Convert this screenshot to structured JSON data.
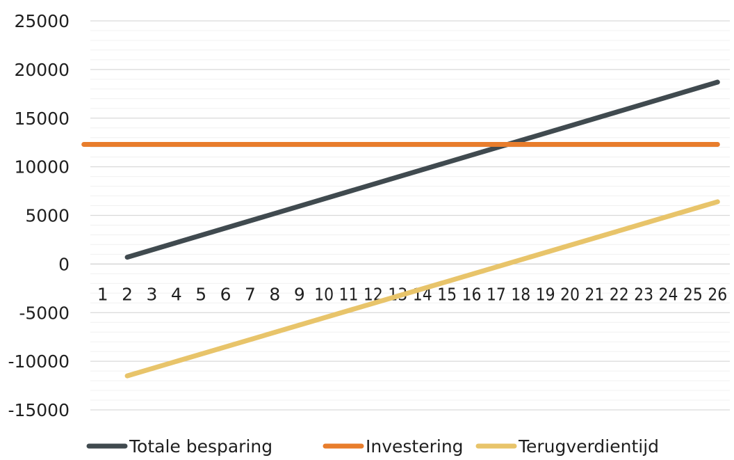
{
  "chart_data": {
    "type": "line",
    "title": "",
    "xlabel": "",
    "ylabel": "",
    "ylim": [
      -15000,
      25000
    ],
    "y_ticks": [
      25000,
      20000,
      15000,
      10000,
      5000,
      0,
      -5000,
      -10000,
      -15000
    ],
    "y_tick_labels": [
      "25000",
      "20000",
      "15000",
      "10000",
      "5000",
      "0",
      "-5000",
      "-10000",
      "-15000"
    ],
    "y_major_step": 5000,
    "y_minor_step": 1000,
    "grid": true,
    "x_tick_labels": [
      "1",
      "2",
      "3",
      "4",
      "5",
      "6",
      "7",
      "8",
      "9",
      "10",
      "11",
      "12",
      "13",
      "14",
      "15",
      "16",
      "17",
      "18",
      "19",
      "20",
      "21",
      "22",
      "23",
      "24",
      "25",
      "26"
    ],
    "x_axis_position": "y=0",
    "legend": "bottom",
    "series": [
      {
        "name": "Totale besparing",
        "color": "#404A4F",
        "start_x": "2",
        "end_x": "26",
        "start_y": 700,
        "end_y": 18700
      },
      {
        "name": "Investering",
        "color": "#E87D2C",
        "start_x": "1",
        "end_x": "26",
        "start_y": 12300,
        "end_y": 12300
      },
      {
        "name": "Terugverdientijd",
        "color": "#E8C46A",
        "start_x": "2",
        "end_x": "26",
        "start_y": -11500,
        "end_y": 6400
      }
    ]
  }
}
